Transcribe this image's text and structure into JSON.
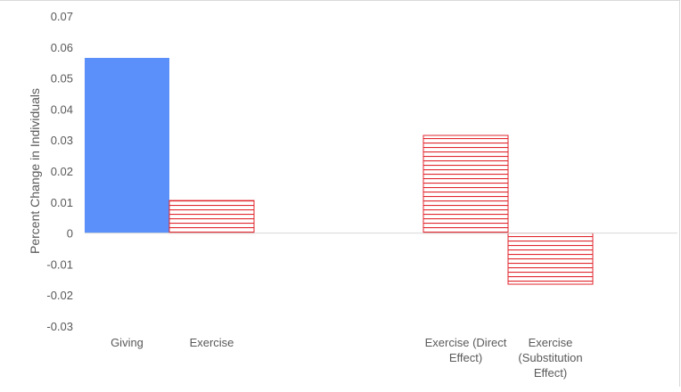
{
  "chart_data": {
    "type": "bar",
    "ylabel": "Percent Change in Individuals",
    "ylim": [
      -0.03,
      0.07
    ],
    "yticks": [
      "0.07",
      "0.06",
      "0.05",
      "0.04",
      "0.03",
      "0.02",
      "0.01",
      "0",
      "-0.01",
      "-0.02",
      "-0.03"
    ],
    "grid": false,
    "legend": "none",
    "bars": [
      {
        "category": [
          "Giving"
        ],
        "value": 0.0565,
        "fill": "solid",
        "color": "#5b8ff9"
      },
      {
        "category": [
          "Exercise"
        ],
        "value": 0.0105,
        "fill": "hatched",
        "color": "#e0262c"
      },
      {
        "category": [
          "Exercise (Direct",
          "Effect)"
        ],
        "value": 0.0315,
        "fill": "hatched",
        "color": "#e0262c"
      },
      {
        "category": [
          "Exercise",
          "(Substitution",
          "Effect)"
        ],
        "value": -0.0165,
        "fill": "hatched",
        "color": "#e0262c"
      }
    ]
  }
}
